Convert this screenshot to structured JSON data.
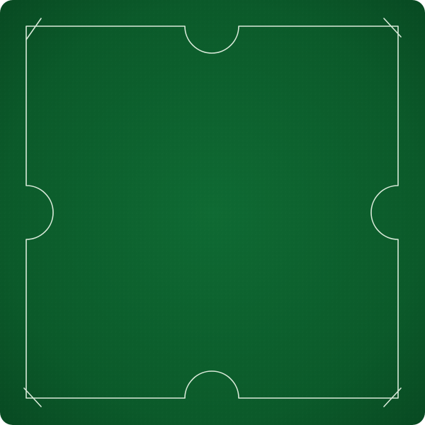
{
  "table": {
    "surface": "felt",
    "colors": {
      "felt": "#0b5a2a",
      "felt_dark": "#084a22",
      "felt_light": "#0f6a33",
      "line": "#d9ead9"
    },
    "seats": [
      "top",
      "right",
      "bottom",
      "left"
    ],
    "corner_markers": [
      "top-left",
      "top-right",
      "bottom-left",
      "bottom-right"
    ]
  }
}
